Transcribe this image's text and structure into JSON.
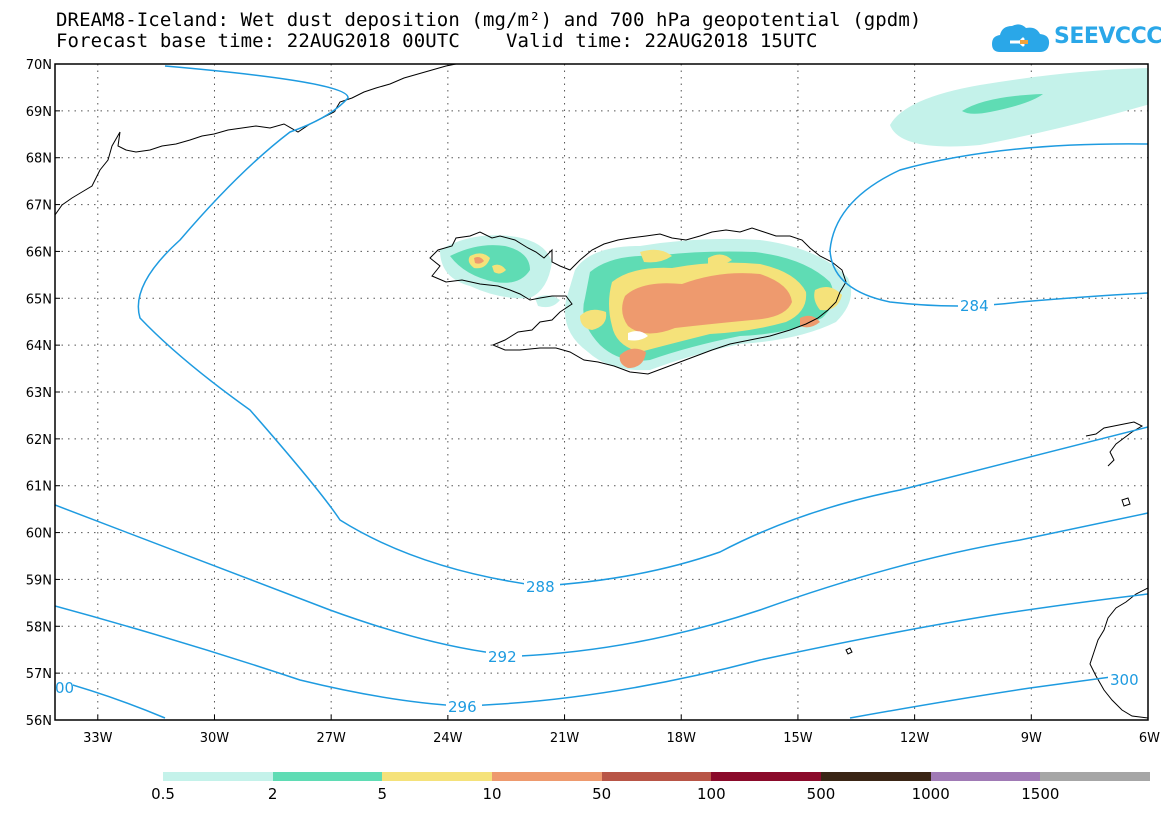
{
  "title": {
    "line1": "DREAM8-Iceland: Wet dust deposition (mg/m²) and 700 hPa geopotential (gpdm)",
    "line2": "Forecast base time: 22AUG2018 00UTC    Valid time: 22AUG2018 15UTC"
  },
  "logo": {
    "text": "SEEVCCC",
    "icon": "cloud-logo-icon"
  },
  "map": {
    "lat_labels": [
      "70N",
      "69N",
      "68N",
      "67N",
      "66N",
      "65N",
      "64N",
      "63N",
      "62N",
      "61N",
      "60N",
      "59N",
      "58N",
      "57N",
      "56N"
    ],
    "lon_labels": [
      "33W",
      "30W",
      "27W",
      "24W",
      "21W",
      "18W",
      "15W",
      "12W",
      "9W",
      "6W"
    ],
    "lat_range": [
      56,
      70
    ],
    "lon_range": [
      -34.1,
      -6
    ],
    "grid": "dotted",
    "contours": [
      {
        "value": "284",
        "label": "284"
      },
      {
        "value": "288",
        "label": "288"
      },
      {
        "value": "292",
        "label": "292"
      },
      {
        "value": "296",
        "label": "296"
      },
      {
        "value": "300",
        "label_left": "00",
        "label_right": "300"
      }
    ],
    "contour_color": "#1e9be0"
  },
  "legend": {
    "colors": [
      "#c4f2ea",
      "#5fdcb4",
      "#f5e27a",
      "#ee9a6e",
      "#b85546",
      "#8a0a2a",
      "#3a2515",
      "#a07ab5",
      "#a6a6a6"
    ],
    "labels": [
      "0.5",
      "2",
      "5",
      "10",
      "50",
      "100",
      "500",
      "1000",
      "1500"
    ]
  }
}
